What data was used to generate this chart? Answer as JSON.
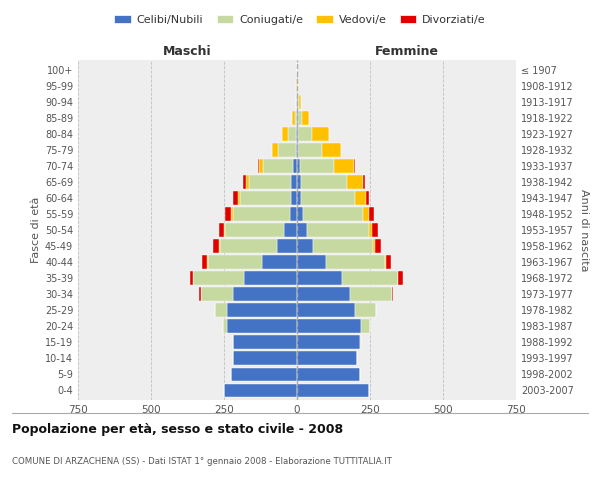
{
  "age_groups": [
    "0-4",
    "5-9",
    "10-14",
    "15-19",
    "20-24",
    "25-29",
    "30-34",
    "35-39",
    "40-44",
    "45-49",
    "50-54",
    "55-59",
    "60-64",
    "65-69",
    "70-74",
    "75-79",
    "80-84",
    "85-89",
    "90-94",
    "95-99",
    "100+"
  ],
  "birth_years": [
    "2003-2007",
    "1998-2002",
    "1993-1997",
    "1988-1992",
    "1983-1987",
    "1978-1982",
    "1973-1977",
    "1968-1972",
    "1963-1967",
    "1958-1962",
    "1953-1957",
    "1948-1952",
    "1943-1947",
    "1938-1942",
    "1933-1937",
    "1928-1932",
    "1923-1927",
    "1918-1922",
    "1913-1917",
    "1908-1912",
    "≤ 1907"
  ],
  "males": {
    "celibi": [
      250,
      225,
      220,
      220,
      240,
      240,
      220,
      180,
      120,
      70,
      45,
      25,
      20,
      20,
      15,
      5,
      2,
      0,
      0,
      0,
      0
    ],
    "coniugati": [
      0,
      0,
      0,
      0,
      15,
      40,
      110,
      175,
      185,
      195,
      200,
      195,
      175,
      145,
      100,
      60,
      30,
      8,
      2,
      1,
      0
    ],
    "vedovi": [
      0,
      0,
      0,
      0,
      0,
      0,
      0,
      0,
      2,
      3,
      5,
      5,
      8,
      10,
      15,
      20,
      20,
      10,
      3,
      1,
      0
    ],
    "divorziati": [
      0,
      0,
      0,
      0,
      0,
      2,
      5,
      12,
      18,
      18,
      18,
      20,
      15,
      10,
      5,
      2,
      0,
      0,
      0,
      0,
      0
    ]
  },
  "females": {
    "nubili": [
      245,
      215,
      205,
      215,
      220,
      200,
      180,
      155,
      100,
      55,
      35,
      20,
      15,
      15,
      10,
      5,
      3,
      2,
      2,
      0,
      0
    ],
    "coniugate": [
      0,
      0,
      0,
      5,
      30,
      70,
      145,
      190,
      200,
      205,
      210,
      205,
      185,
      155,
      115,
      80,
      50,
      15,
      5,
      2,
      0
    ],
    "vedove": [
      0,
      0,
      0,
      0,
      0,
      0,
      0,
      2,
      5,
      8,
      12,
      20,
      35,
      55,
      70,
      65,
      55,
      25,
      8,
      3,
      0
    ],
    "divorziate": [
      0,
      0,
      0,
      0,
      0,
      2,
      5,
      15,
      18,
      20,
      20,
      18,
      12,
      8,
      5,
      2,
      0,
      0,
      0,
      0,
      0
    ]
  },
  "colors": {
    "celibi": "#4472c4",
    "coniugati": "#c5d9a0",
    "vedovi": "#ffc000",
    "divorziati": "#e00000"
  },
  "title": "Popolazione per età, sesso e stato civile - 2008",
  "subtitle": "COMUNE DI ARZACHENA (SS) - Dati ISTAT 1° gennaio 2008 - Elaborazione TUTTITALIA.IT",
  "xlabel_left": "Maschi",
  "xlabel_right": "Femmine",
  "ylabel_left": "Fasce di età",
  "ylabel_right": "Anni di nascita",
  "xlim": 750,
  "legend_labels": [
    "Celibi/Nubili",
    "Coniugati/e",
    "Vedovi/e",
    "Divorziati/e"
  ],
  "bg_color": "#eeeeee"
}
